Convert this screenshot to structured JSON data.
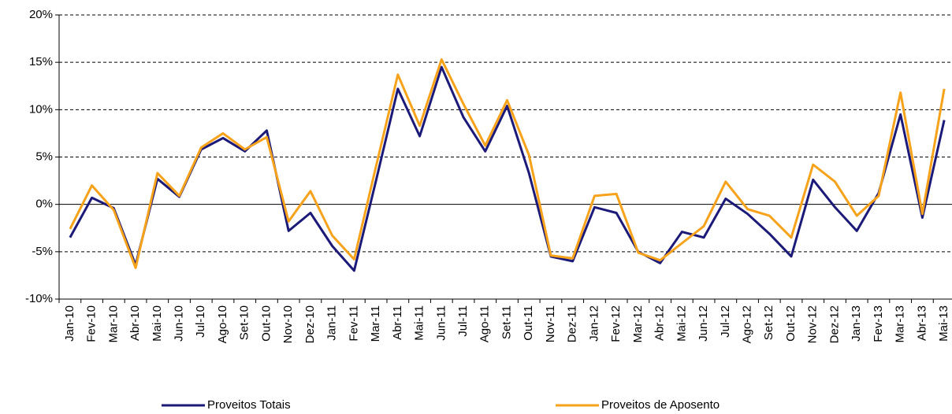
{
  "chart_data": {
    "type": "line",
    "categories": [
      "Jan-10",
      "Fev-10",
      "Mar-10",
      "Abr-10",
      "Mai-10",
      "Jun-10",
      "Jul-10",
      "Ago-10",
      "Set-10",
      "Out-10",
      "Nov-10",
      "Dez-10",
      "Jan-11",
      "Fev-11",
      "Mar-11",
      "Abr-11",
      "Mai-11",
      "Jun-11",
      "Jul-11",
      "Ago-11",
      "Set-11",
      "Out-11",
      "Nov-11",
      "Dez-11",
      "Jan-12",
      "Fev-12",
      "Mar-12",
      "Abr-12",
      "Mai-12",
      "Jun-12",
      "Jul-12",
      "Ago-12",
      "Set-12",
      "Out-12",
      "Nov-12",
      "Dez-12",
      "Jan-13",
      "Fev-13",
      "Mar-13",
      "Abr-13",
      "Mai-13"
    ],
    "series": [
      {
        "name": "Proveitos Totais",
        "color": "#1c1a78",
        "values": [
          -3.5,
          0.7,
          -0.4,
          -6.4,
          2.7,
          0.8,
          5.8,
          7.0,
          5.6,
          7.8,
          -2.8,
          -0.9,
          -4.4,
          -7.0,
          2.5,
          12.2,
          7.2,
          14.5,
          9.2,
          5.6,
          10.4,
          3.3,
          -5.5,
          -6.0,
          -0.3,
          -0.9,
          -5.0,
          -6.2,
          -2.9,
          -3.5,
          0.6,
          -1.0,
          -3.1,
          -5.5,
          2.6,
          -0.3,
          -2.8,
          1.2,
          9.5,
          -1.4,
          8.9
        ]
      },
      {
        "name": "Proveitos de Aposento",
        "color": "#f7a21b",
        "values": [
          -2.6,
          2.0,
          -0.6,
          -6.7,
          3.3,
          0.9,
          6.0,
          7.5,
          5.8,
          7.1,
          -1.8,
          1.4,
          -3.3,
          -5.8,
          4.0,
          13.7,
          8.3,
          15.3,
          10.6,
          6.2,
          11.0,
          5.2,
          -5.4,
          -5.7,
          0.9,
          1.1,
          -5.1,
          -5.9,
          -4.1,
          -2.3,
          2.4,
          -0.5,
          -1.2,
          -3.5,
          4.2,
          2.4,
          -1.2,
          0.9,
          11.8,
          -1.0,
          12.2
        ]
      }
    ],
    "ylim": [
      -10,
      20
    ],
    "yticks": [
      {
        "value": -10,
        "label": "-10%"
      },
      {
        "value": -5,
        "label": "-5%"
      },
      {
        "value": 0,
        "label": "0%"
      },
      {
        "value": 5,
        "label": "5%"
      },
      {
        "value": 10,
        "label": "10%"
      },
      {
        "value": 15,
        "label": "15%"
      },
      {
        "value": 20,
        "label": "20%"
      }
    ],
    "grid": true
  }
}
